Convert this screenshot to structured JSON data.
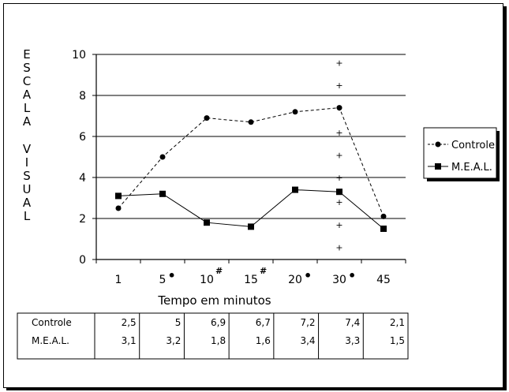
{
  "chart_data": {
    "type": "line",
    "ylabel": "ESCALA VISUAL",
    "xlabel": "Tempo em minutos",
    "ylim": [
      0,
      10
    ],
    "y_ticks": [
      "0",
      "2",
      "4",
      "6",
      "8",
      "10"
    ],
    "categories": [
      "1",
      "5",
      "10",
      "15",
      "20",
      "30",
      "45"
    ],
    "category_markers": [
      "",
      "•",
      "#",
      "#",
      "•",
      "•",
      ""
    ],
    "grid": true,
    "legend_position": "right",
    "series": [
      {
        "name": "Controle",
        "values": [
          2.5,
          5.0,
          6.9,
          6.7,
          7.2,
          7.4,
          2.1
        ],
        "style": "dashed",
        "marker": "circle"
      },
      {
        "name": "M.E.A.L.",
        "values": [
          3.1,
          3.2,
          1.8,
          1.6,
          3.4,
          3.3,
          1.5
        ],
        "style": "solid",
        "marker": "square"
      }
    ],
    "annotation_symbol": "+",
    "annotation_values": [
      0.6,
      1.7,
      2.8,
      4.0,
      5.1,
      6.2,
      7.4,
      8.5,
      9.6
    ],
    "table": {
      "rows": [
        {
          "label": "Controle",
          "values": [
            "2,5",
            "5",
            "6,9",
            "6,7",
            "7,2",
            "7,4",
            "2,1"
          ]
        },
        {
          "label": "M.E.A.L.",
          "values": [
            "3,1",
            "3,2",
            "1,8",
            "1,6",
            "3,4",
            "3,3",
            "1,5"
          ]
        }
      ]
    }
  },
  "colors": {
    "line": "#000000",
    "background": "#ffffff"
  }
}
